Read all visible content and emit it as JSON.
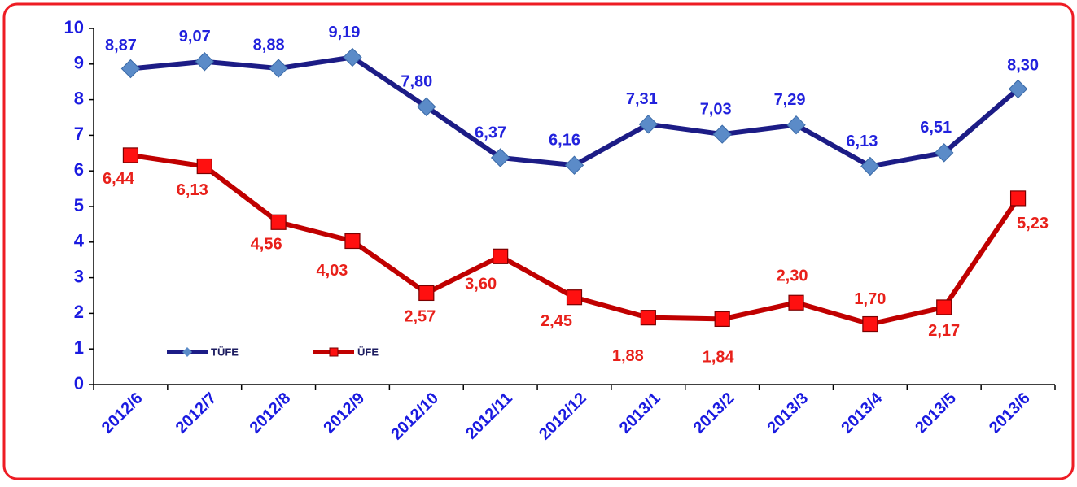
{
  "chart_data": {
    "type": "line",
    "categories": [
      "2012/6",
      "2012/7",
      "2012/8",
      "2012/9",
      "2012/10",
      "2012/11",
      "2012/12",
      "2013/1",
      "2013/2",
      "2013/3",
      "2013/4",
      "2013/5",
      "2013/6"
    ],
    "series": [
      {
        "name": "TÜFE",
        "color": "#1c1c86",
        "marker_color": "#5b8bc8",
        "marker": "diamond",
        "label_color": "#2222dd",
        "values": [
          8.87,
          9.07,
          8.88,
          9.19,
          7.8,
          6.37,
          6.16,
          7.31,
          7.03,
          7.29,
          6.13,
          6.51,
          8.3
        ],
        "value_labels": [
          "8,87",
          "9,07",
          "8,88",
          "9,19",
          "7,80",
          "6,37",
          "6,16",
          "7,31",
          "7,03",
          "7,29",
          "6,13",
          "6,51",
          "8,30"
        ]
      },
      {
        "name": "ÜFE",
        "color": "#c00000",
        "marker_color": "#ff1010",
        "marker": "square",
        "label_color": "#e8201a",
        "values": [
          6.44,
          6.13,
          4.56,
          4.03,
          2.57,
          3.6,
          2.45,
          1.88,
          1.84,
          2.3,
          1.7,
          2.17,
          5.23
        ],
        "value_labels": [
          "6,44",
          "6,13",
          "4,56",
          "4,03",
          "2,57",
          "3,60",
          "2,45",
          "1,88",
          "1,84",
          "2,30",
          "1,70",
          "2,17",
          "5,23"
        ]
      }
    ],
    "ylim": [
      0,
      10
    ],
    "yticks": [
      0,
      1,
      2,
      3,
      4,
      5,
      6,
      7,
      8,
      9,
      10
    ],
    "grid": false
  }
}
